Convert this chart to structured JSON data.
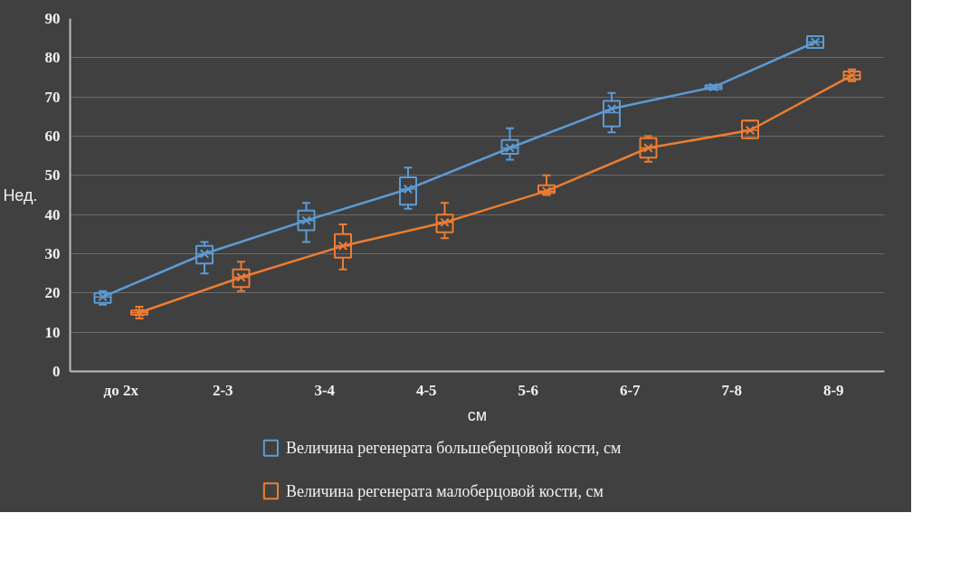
{
  "chart_data": {
    "type": "box",
    "categories": [
      "до 2х",
      "2-3",
      "3-4",
      "4-5",
      "5-6",
      "6-7",
      "7-8",
      "8-9"
    ],
    "xlabel": "см",
    "ylabel": "Нед.",
    "ylim": [
      0,
      90
    ],
    "yticks": [
      0,
      10,
      20,
      30,
      40,
      50,
      60,
      70,
      80,
      90
    ],
    "grid": "y",
    "legend": "bottom",
    "marker": "cross",
    "series": [
      {
        "color": "#5b9bd5",
        "boxes": [
          {
            "low": 17,
            "q1": 17.5,
            "median": 19,
            "q3": 20,
            "high": 20.5
          },
          {
            "low": 25,
            "q1": 27.5,
            "median": 30,
            "q3": 32,
            "high": 33
          },
          {
            "low": 33,
            "q1": 36,
            "median": 38.5,
            "q3": 41,
            "high": 43
          },
          {
            "low": 41.5,
            "q1": 42.5,
            "median": 46.5,
            "q3": 49.5,
            "high": 52
          },
          {
            "low": 54,
            "q1": 55.5,
            "median": 57,
            "q3": 59,
            "high": 62
          },
          {
            "low": 61,
            "q1": 62.5,
            "median": 66,
            "q3": 69,
            "high": 71
          },
          {
            "low": 72,
            "q1": 72,
            "median": 72.5,
            "q3": 73,
            "high": 73
          },
          {
            "low": 82.5,
            "q1": 82.5,
            "median": 84,
            "q3": 85.5,
            "high": 85.5
          }
        ]
      },
      {
        "color": "#ed7d31",
        "boxes": [
          {
            "low": 13.5,
            "q1": 14.5,
            "median": 15,
            "q3": 15.5,
            "high": 16.5
          },
          {
            "low": 20.5,
            "q1": 21.5,
            "median": 24,
            "q3": 26,
            "high": 28
          },
          {
            "low": 26,
            "q1": 29,
            "median": 32,
            "q3": 35,
            "high": 37.5
          },
          {
            "low": 34,
            "q1": 35.5,
            "median": 38,
            "q3": 40,
            "high": 43
          },
          {
            "low": 45,
            "q1": 45.5,
            "median": 46,
            "q3": 47.5,
            "high": 50
          },
          {
            "low": 53.5,
            "q1": 54.5,
            "median": 57,
            "q3": 59.5,
            "high": 60
          },
          {
            "low": 59.5,
            "q1": 59.5,
            "median": 61.5,
            "q3": 64,
            "high": 64
          },
          {
            "low": 74,
            "q1": 74.5,
            "median": 75.5,
            "q3": 76.5,
            "high": 77
          }
        ]
      },
      {
        "type": "line",
        "name": "Величина регенерата большеберцовой кости, см",
        "color": "#5b9bd5",
        "values": [
          19,
          30,
          38.5,
          46.5,
          57,
          67,
          72.5,
          84
        ]
      },
      {
        "type": "line",
        "name": "Величина регенерата малоберцовой кости, см",
        "color": "#ed7d31",
        "values": [
          15,
          24,
          32,
          38,
          46,
          57,
          61.5,
          75.5
        ]
      }
    ]
  }
}
